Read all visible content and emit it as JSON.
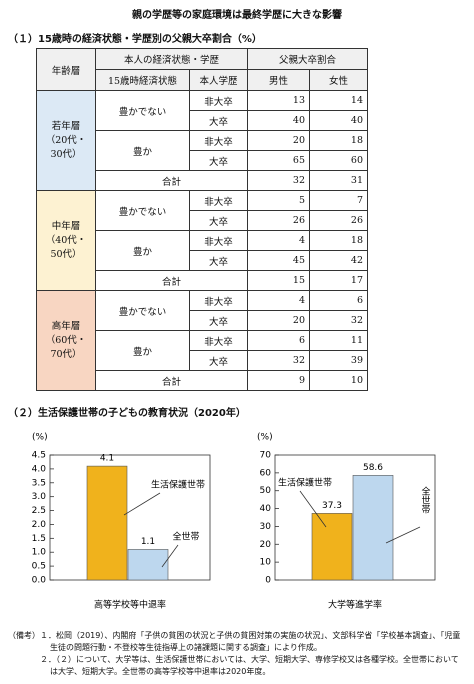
{
  "title": "親の学歴等の家庭環境は最終学歴に大きな影響",
  "section1": "（１）15歳時の経済状態・学歴別の父親大卒割合（%）",
  "table": {
    "header": {
      "age": "年齢層",
      "self": "本人の経済状態・学歴",
      "econ": "15歳時経済状態",
      "edu": "本人学歴",
      "father": "父親大卒割合",
      "male": "男性",
      "female": "女性"
    },
    "groups": [
      {
        "lines": [
          "若年層",
          "（20代・",
          "30代）"
        ],
        "color": "#dce9f5",
        "econ": [
          {
            "label": "豊かでない",
            "rows": [
              {
                "edu": "非大卒",
                "male": 13,
                "female": 14
              },
              {
                "edu": "大卒",
                "male": 40,
                "female": 40
              }
            ]
          },
          {
            "label": "豊か",
            "rows": [
              {
                "edu": "非大卒",
                "male": 20,
                "female": 18
              },
              {
                "edu": "大卒",
                "male": 65,
                "female": 60
              }
            ]
          }
        ],
        "total": {
          "label": "合計",
          "male": 32,
          "female": 31
        }
      },
      {
        "lines": [
          "中年層",
          "（40代・",
          "50代）"
        ],
        "color": "#fdf2d2",
        "econ": [
          {
            "label": "豊かでない",
            "rows": [
              {
                "edu": "非大卒",
                "male": 5,
                "female": 7
              },
              {
                "edu": "大卒",
                "male": 26,
                "female": 26
              }
            ]
          },
          {
            "label": "豊か",
            "rows": [
              {
                "edu": "非大卒",
                "male": 4,
                "female": 18
              },
              {
                "edu": "大卒",
                "male": 45,
                "female": 42
              }
            ]
          }
        ],
        "total": {
          "label": "合計",
          "male": 15,
          "female": 17
        }
      },
      {
        "lines": [
          "高年層",
          "（60代・",
          "70代）"
        ],
        "color": "#f8d6c2",
        "econ": [
          {
            "label": "豊かでない",
            "rows": [
              {
                "edu": "非大卒",
                "male": 4,
                "female": 6
              },
              {
                "edu": "大卒",
                "male": 20,
                "female": 32
              }
            ]
          },
          {
            "label": "豊か",
            "rows": [
              {
                "edu": "非大卒",
                "male": 6,
                "female": 11
              },
              {
                "edu": "大卒",
                "male": 32,
                "female": 39
              }
            ]
          }
        ],
        "total": {
          "label": "合計",
          "male": 9,
          "female": 10
        }
      }
    ]
  },
  "section2": "（２）生活保護世帯の子どもの教育状況（2020年）",
  "chart_data": [
    {
      "type": "bar",
      "y_unit": "(%)",
      "categories": [
        "高等学校等中退率"
      ],
      "series": [
        {
          "name": "生活保護世帯",
          "color": "#f0b21c",
          "values": [
            4.1
          ]
        },
        {
          "name": "全世帯",
          "color": "#bdd7ee",
          "values": [
            1.1
          ]
        }
      ],
      "ylim": [
        0,
        4.5
      ],
      "yticks": [
        {
          "value": 0,
          "label": "0.0"
        },
        0.5,
        {
          "value": 1,
          "label": "1.0"
        },
        1.5,
        {
          "value": 2,
          "label": "2.0"
        },
        2.5,
        {
          "value": 3,
          "label": "3.0"
        },
        3.5,
        {
          "value": 4,
          "label": "4.0"
        },
        4.5
      ]
    },
    {
      "type": "bar",
      "y_unit": "(%)",
      "categories": [
        "大学等進学率"
      ],
      "series": [
        {
          "name": "生活保護世帯",
          "color": "#f0b21c",
          "values": [
            37.3
          ]
        },
        {
          "name": "全世帯",
          "color": "#bdd7ee",
          "values": [
            58.6
          ]
        }
      ],
      "ylim": [
        0,
        70
      ],
      "yticks": [
        0,
        10,
        20,
        30,
        40,
        50,
        60,
        70
      ]
    }
  ],
  "notes": {
    "prefix": "（備考）",
    "items": [
      "１．松岡（2019）、内閣府「子供の貧困の状況と子供の貧困対策の実施の状況」、文部科学省「学校基本調査」、「児童生徒の問題行動・不登校等生徒指導上の諸課題に関する調査」により作成。",
      "２．（２）について、大学等は、生活保護世帯においては、大学、短期大学、専修学校又は各種学校。全世帯においては大学、短期大学。全世帯の高等学校等中退率は2020年度。"
    ]
  }
}
